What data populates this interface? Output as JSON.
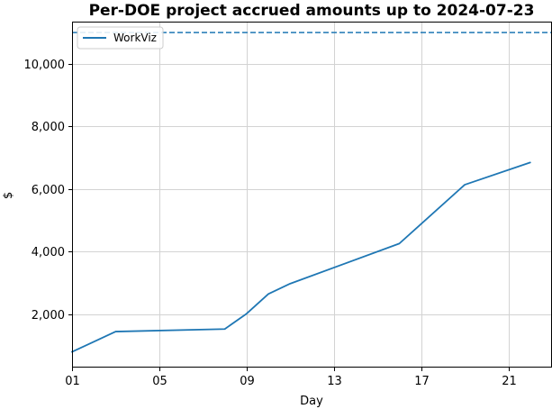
{
  "chart_data": {
    "type": "line",
    "title": "Per-DOE project accrued amounts up to 2024-07-23",
    "xlabel": "Day",
    "ylabel": "$",
    "x_ticks": [
      "01",
      "05",
      "09",
      "13",
      "17",
      "21"
    ],
    "x_tick_values": [
      1,
      5,
      9,
      13,
      17,
      21
    ],
    "y_ticks": [
      "2,000",
      "4,000",
      "6,000",
      "8,000",
      "10,000"
    ],
    "y_tick_values": [
      2000,
      4000,
      6000,
      8000,
      10000
    ],
    "xlim": [
      1,
      23
    ],
    "ylim": [
      300,
      11350
    ],
    "grid": true,
    "legend_position": "top-left",
    "series": [
      {
        "name": "WorkViz",
        "color": "#1f77b4",
        "x": [
          1,
          3,
          8,
          9,
          10,
          11,
          16,
          19,
          22
        ],
        "values": [
          800,
          1450,
          1530,
          2020,
          2650,
          2980,
          4260,
          6140,
          6850
        ]
      }
    ],
    "reference_line": {
      "value": 11000,
      "style": "dashed",
      "color": "#1f77b4"
    }
  }
}
